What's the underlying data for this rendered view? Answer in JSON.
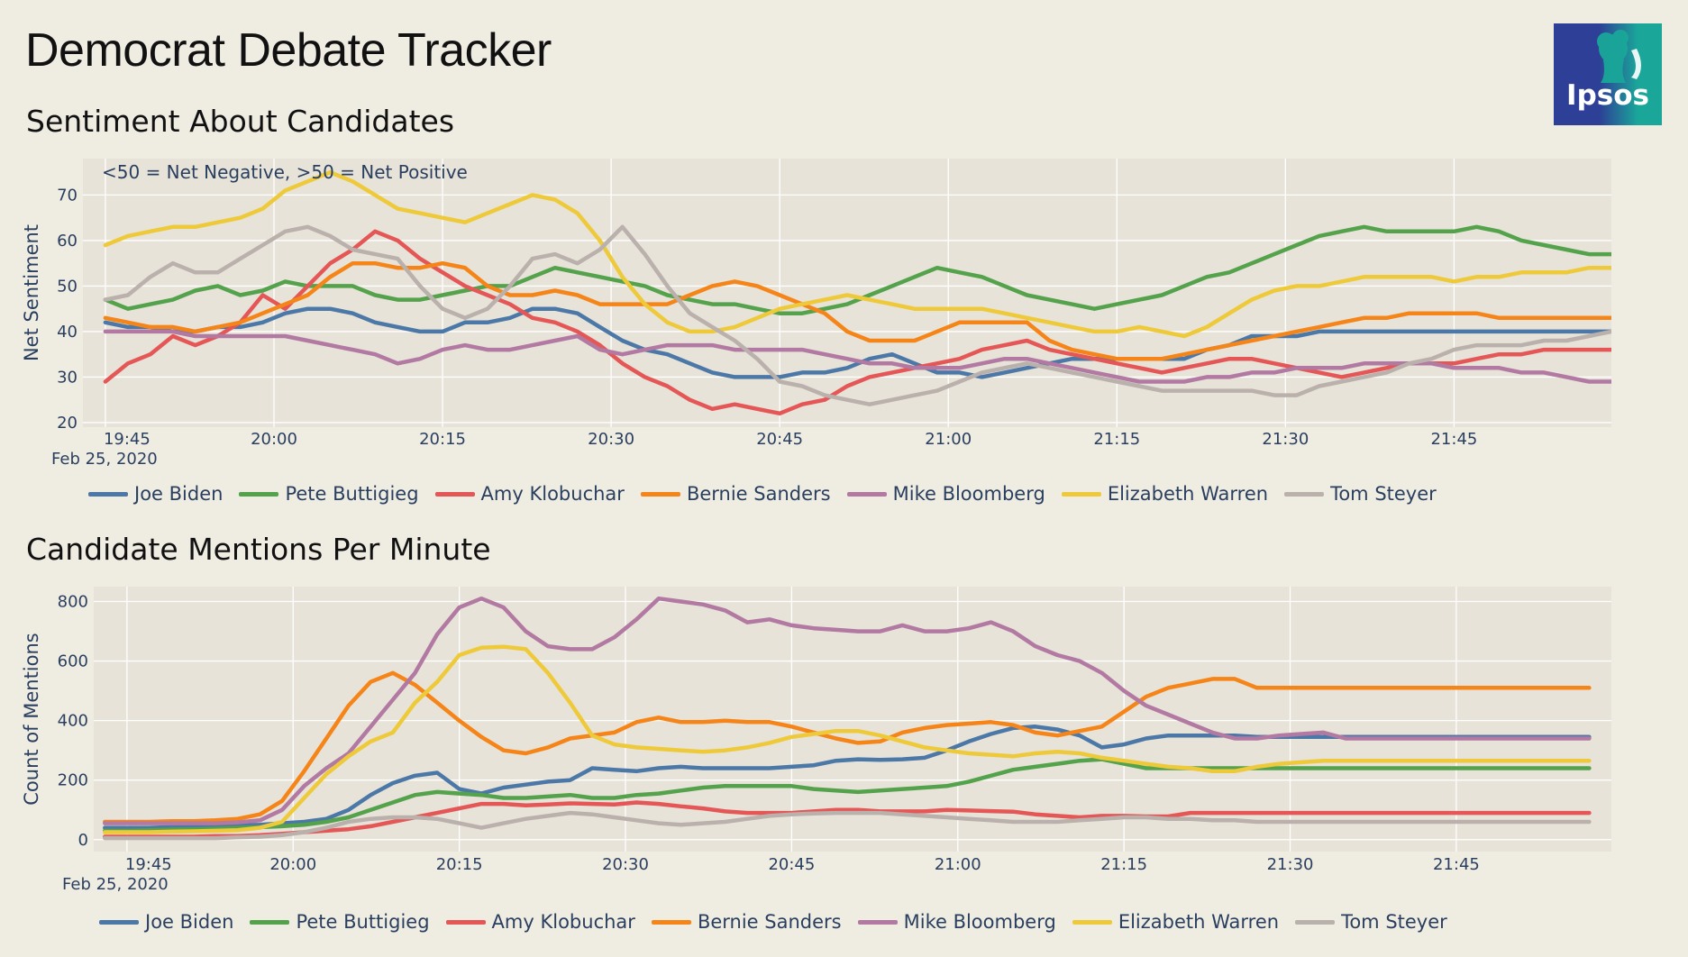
{
  "page": {
    "title": "Democrat Debate Tracker",
    "logo_text": "Ipsos",
    "colors": {
      "background": "#efece2",
      "plot_bg": "#e7e3d8",
      "logo_blue": "#2d3f96",
      "logo_teal": "#1aa79a"
    }
  },
  "series_meta": [
    {
      "name": "Joe Biden",
      "color": "#4c78a8"
    },
    {
      "name": "Pete Buttigieg",
      "color": "#54a24b"
    },
    {
      "name": "Amy Klobuchar",
      "color": "#e45756"
    },
    {
      "name": "Bernie Sanders",
      "color": "#f58518"
    },
    {
      "name": "Mike Bloomberg",
      "color": "#b279a2"
    },
    {
      "name": "Elizabeth Warren",
      "color": "#eeca3b"
    },
    {
      "name": "Tom Steyer",
      "color": "#bab0ac"
    }
  ],
  "chart_data": [
    {
      "type": "line",
      "title": "Sentiment About Candidates",
      "ylabel": "Net Sentiment",
      "xlabel": "",
      "annotation": "<50 = Net Negative, >50 = Net Positive",
      "x_start": "19:45",
      "x_end": "21:59",
      "x_step_minutes": 2,
      "x_date_label": "Feb 25, 2020",
      "xticks": [
        "19:45",
        "20:00",
        "20:15",
        "20:30",
        "20:45",
        "21:00",
        "21:15",
        "21:30",
        "21:45"
      ],
      "yticks": [
        20,
        30,
        40,
        50,
        60,
        70
      ],
      "ylim": [
        19,
        78
      ],
      "series": [
        {
          "name": "Joe Biden",
          "values": [
            42,
            41,
            41,
            40,
            40,
            41,
            41,
            42,
            44,
            45,
            45,
            44,
            42,
            41,
            40,
            40,
            42,
            42,
            43,
            45,
            45,
            44,
            41,
            38,
            36,
            35,
            33,
            31,
            30,
            30,
            30,
            31,
            31,
            32,
            34,
            35,
            33,
            31,
            31,
            30,
            31,
            32,
            33,
            34,
            34,
            34,
            34,
            34,
            34,
            36,
            37,
            39,
            39,
            39,
            40,
            40,
            40,
            40,
            40,
            40,
            40,
            40,
            40,
            40,
            40,
            40,
            40,
            40
          ]
        },
        {
          "name": "Pete Buttigieg",
          "values": [
            47,
            45,
            46,
            47,
            49,
            50,
            48,
            49,
            51,
            50,
            50,
            50,
            48,
            47,
            47,
            48,
            49,
            50,
            50,
            52,
            54,
            53,
            52,
            51,
            50,
            48,
            47,
            46,
            46,
            45,
            44,
            44,
            45,
            46,
            48,
            50,
            52,
            54,
            53,
            52,
            50,
            48,
            47,
            46,
            45,
            46,
            47,
            48,
            50,
            52,
            53,
            55,
            57,
            59,
            61,
            62,
            63,
            62,
            62,
            62,
            62,
            63,
            62,
            60,
            59,
            58,
            57,
            57
          ]
        },
        {
          "name": "Amy Klobuchar",
          "values": [
            29,
            33,
            35,
            39,
            37,
            39,
            42,
            48,
            45,
            50,
            55,
            58,
            62,
            60,
            56,
            53,
            50,
            48,
            46,
            43,
            42,
            40,
            37,
            33,
            30,
            28,
            25,
            23,
            24,
            23,
            22,
            24,
            25,
            28,
            30,
            31,
            32,
            33,
            34,
            36,
            37,
            38,
            36,
            35,
            34,
            33,
            32,
            31,
            32,
            33,
            34,
            34,
            33,
            32,
            31,
            30,
            31,
            32,
            33,
            33,
            33,
            34,
            35,
            35,
            36,
            36,
            36,
            36
          ]
        },
        {
          "name": "Bernie Sanders",
          "values": [
            43,
            42,
            41,
            41,
            40,
            41,
            42,
            44,
            46,
            48,
            52,
            55,
            55,
            54,
            54,
            55,
            54,
            50,
            48,
            48,
            49,
            48,
            46,
            46,
            46,
            46,
            48,
            50,
            51,
            50,
            48,
            46,
            44,
            40,
            38,
            38,
            38,
            40,
            42,
            42,
            42,
            42,
            38,
            36,
            35,
            34,
            34,
            34,
            35,
            36,
            37,
            38,
            39,
            40,
            41,
            42,
            43,
            43,
            44,
            44,
            44,
            44,
            43,
            43,
            43,
            43,
            43,
            43
          ]
        },
        {
          "name": "Mike Bloomberg",
          "values": [
            40,
            40,
            40,
            40,
            39,
            39,
            39,
            39,
            39,
            38,
            37,
            36,
            35,
            33,
            34,
            36,
            37,
            36,
            36,
            37,
            38,
            39,
            36,
            35,
            36,
            37,
            37,
            37,
            36,
            36,
            36,
            36,
            35,
            34,
            33,
            33,
            32,
            32,
            32,
            33,
            34,
            34,
            33,
            32,
            31,
            30,
            29,
            29,
            29,
            30,
            30,
            31,
            31,
            32,
            32,
            32,
            33,
            33,
            33,
            33,
            32,
            32,
            32,
            31,
            31,
            30,
            29,
            29
          ]
        },
        {
          "name": "Elizabeth Warren",
          "values": [
            59,
            61,
            62,
            63,
            63,
            64,
            65,
            67,
            71,
            73,
            75,
            73,
            70,
            67,
            66,
            65,
            64,
            66,
            68,
            70,
            69,
            66,
            60,
            52,
            46,
            42,
            40,
            40,
            41,
            43,
            45,
            46,
            47,
            48,
            47,
            46,
            45,
            45,
            45,
            45,
            44,
            43,
            42,
            41,
            40,
            40,
            41,
            40,
            39,
            41,
            44,
            47,
            49,
            50,
            50,
            51,
            52,
            52,
            52,
            52,
            51,
            52,
            52,
            53,
            53,
            53,
            54,
            54
          ]
        },
        {
          "name": "Tom Steyer",
          "values": [
            47,
            48,
            52,
            55,
            53,
            53,
            56,
            59,
            62,
            63,
            61,
            58,
            57,
            56,
            50,
            45,
            43,
            45,
            50,
            56,
            57,
            55,
            58,
            63,
            57,
            50,
            44,
            41,
            38,
            34,
            29,
            28,
            26,
            25,
            24,
            25,
            26,
            27,
            29,
            31,
            32,
            33,
            32,
            31,
            30,
            29,
            28,
            27,
            27,
            27,
            27,
            27,
            26,
            26,
            28,
            29,
            30,
            31,
            33,
            34,
            36,
            37,
            37,
            37,
            38,
            38,
            39,
            40
          ]
        }
      ]
    },
    {
      "type": "line",
      "title": "Candidate Mentions Per Minute",
      "ylabel": "Count of Mentions",
      "xlabel": "",
      "x_start": "19:43",
      "x_end": "21:58",
      "x_step_minutes": 2,
      "x_date_label": "Feb 25, 2020",
      "xticks": [
        "19:45",
        "20:00",
        "20:15",
        "20:30",
        "20:45",
        "21:00",
        "21:15",
        "21:30",
        "21:45"
      ],
      "yticks": [
        0,
        200,
        400,
        600,
        800
      ],
      "ylim": [
        -40,
        850
      ],
      "series": [
        {
          "name": "Joe Biden",
          "values": [
            40,
            40,
            40,
            42,
            43,
            45,
            48,
            50,
            55,
            60,
            70,
            100,
            150,
            190,
            215,
            225,
            170,
            155,
            175,
            185,
            195,
            200,
            240,
            235,
            230,
            240,
            245,
            240,
            240,
            240,
            240,
            245,
            250,
            265,
            270,
            268,
            270,
            275,
            300,
            330,
            355,
            375,
            380,
            370,
            350,
            310,
            320,
            340,
            350,
            350,
            350,
            350,
            345,
            345,
            345,
            345,
            345,
            345,
            345,
            345,
            345,
            345,
            345,
            345,
            345,
            345,
            345,
            345
          ]
        },
        {
          "name": "Pete Buttigieg",
          "values": [
            30,
            30,
            32,
            34,
            35,
            37,
            40,
            42,
            45,
            50,
            60,
            75,
            100,
            125,
            150,
            160,
            155,
            150,
            140,
            140,
            145,
            150,
            140,
            140,
            150,
            155,
            165,
            175,
            180,
            180,
            180,
            180,
            170,
            165,
            160,
            165,
            170,
            175,
            180,
            195,
            215,
            235,
            245,
            255,
            265,
            270,
            255,
            240,
            240,
            240,
            240,
            240,
            240,
            240,
            240,
            240,
            240,
            240,
            240,
            240,
            240,
            240,
            240,
            240,
            240,
            240,
            240,
            240
          ]
        },
        {
          "name": "Amy Klobuchar",
          "values": [
            10,
            10,
            10,
            10,
            10,
            12,
            12,
            15,
            20,
            25,
            30,
            35,
            45,
            60,
            75,
            90,
            105,
            120,
            120,
            115,
            118,
            122,
            120,
            118,
            125,
            120,
            112,
            105,
            95,
            90,
            90,
            90,
            95,
            100,
            100,
            95,
            95,
            95,
            100,
            98,
            96,
            94,
            85,
            80,
            75,
            80,
            80,
            78,
            78,
            90,
            90,
            90,
            90,
            90,
            90,
            90,
            90,
            90,
            90,
            90,
            90,
            90,
            90,
            90,
            90,
            90,
            90,
            90
          ]
        },
        {
          "name": "Bernie Sanders",
          "values": [
            60,
            60,
            60,
            62,
            62,
            65,
            70,
            85,
            130,
            230,
            340,
            450,
            530,
            560,
            520,
            460,
            400,
            345,
            300,
            290,
            310,
            340,
            350,
            360,
            395,
            410,
            395,
            395,
            400,
            395,
            395,
            380,
            360,
            340,
            325,
            330,
            360,
            375,
            385,
            390,
            395,
            385,
            360,
            350,
            365,
            380,
            430,
            480,
            510,
            525,
            540,
            540,
            510,
            510,
            510,
            510,
            510,
            510,
            510,
            510,
            510,
            510,
            510,
            510,
            510,
            510,
            510,
            510
          ]
        },
        {
          "name": "Mike Bloomberg",
          "values": [
            55,
            55,
            55,
            55,
            55,
            55,
            58,
            65,
            100,
            180,
            240,
            290,
            380,
            470,
            560,
            690,
            780,
            810,
            780,
            700,
            650,
            640,
            640,
            680,
            740,
            810,
            800,
            790,
            770,
            730,
            740,
            720,
            710,
            705,
            700,
            700,
            720,
            700,
            700,
            710,
            730,
            700,
            650,
            620,
            600,
            560,
            500,
            450,
            420,
            390,
            360,
            340,
            340,
            350,
            355,
            360,
            340,
            340,
            340,
            340,
            340,
            340,
            340,
            340,
            340,
            340,
            340,
            340
          ]
        },
        {
          "name": "Elizabeth Warren",
          "values": [
            25,
            25,
            25,
            27,
            28,
            30,
            32,
            40,
            60,
            140,
            220,
            280,
            330,
            360,
            460,
            530,
            620,
            645,
            648,
            640,
            560,
            460,
            350,
            320,
            310,
            305,
            300,
            295,
            300,
            310,
            325,
            345,
            355,
            365,
            365,
            350,
            330,
            310,
            300,
            290,
            285,
            280,
            290,
            295,
            290,
            275,
            265,
            255,
            245,
            240,
            230,
            230,
            245,
            255,
            260,
            265,
            265,
            265,
            265,
            265,
            265,
            265,
            265,
            265,
            265,
            265,
            265,
            265
          ]
        },
        {
          "name": "Tom Steyer",
          "values": [
            5,
            5,
            5,
            5,
            5,
            5,
            8,
            10,
            15,
            25,
            40,
            60,
            70,
            75,
            75,
            70,
            55,
            40,
            55,
            70,
            80,
            90,
            85,
            75,
            65,
            55,
            50,
            55,
            60,
            70,
            80,
            85,
            88,
            90,
            90,
            90,
            85,
            80,
            75,
            70,
            65,
            60,
            60,
            60,
            65,
            70,
            75,
            75,
            70,
            70,
            65,
            65,
            60,
            60,
            60,
            60,
            60,
            60,
            60,
            60,
            60,
            60,
            60,
            60,
            60,
            60,
            60,
            60
          ]
        }
      ]
    }
  ]
}
